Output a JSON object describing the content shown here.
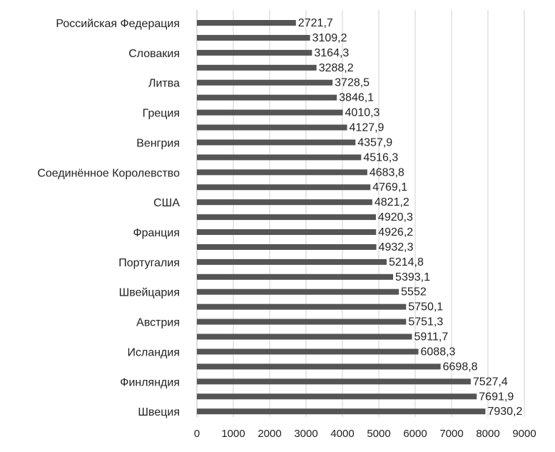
{
  "chart_data": {
    "type": "bar",
    "orientation": "horizontal",
    "categories": [
      "Российская Федерация",
      "",
      "Словакия",
      "",
      "Литва",
      "",
      "Греция",
      "",
      "Венгрия",
      "",
      "Соединённое Королевство",
      "",
      "США",
      "",
      "Франция",
      "",
      "Португалия",
      "",
      "Швейцария",
      "",
      "Австрия",
      "",
      "Исландия",
      "",
      "Финляндия",
      "",
      "Швеция"
    ],
    "values": [
      2721.7,
      3109.2,
      3164.3,
      3288.2,
      3728.5,
      3846.1,
      4010.3,
      4127.9,
      4357.9,
      4516.3,
      4683.8,
      4769.1,
      4821.2,
      4920.3,
      4926.2,
      4932.3,
      5214.8,
      5393.1,
      5552,
      5750.1,
      5751.3,
      5911.7,
      6088.3,
      6698.8,
      7527.4,
      7691.9,
      7930.2
    ],
    "value_labels": [
      "2721,7",
      "3109,2",
      "3164,3",
      "3288,2",
      "3728,5",
      "3846,1",
      "4010,3",
      "4127,9",
      "4357,9",
      "4516,3",
      "4683,8",
      "4769,1",
      "4821,2",
      "4920,3",
      "4926,2",
      "4932,3",
      "5214,8",
      "5393,1",
      "5552",
      "5750,1",
      "5751,3",
      "5911,7",
      "6088,3",
      "6698,8",
      "7527,4",
      "7691,9",
      "7930,2"
    ],
    "xlim": [
      0,
      9000
    ],
    "xticks": [
      "0",
      "1000",
      "2000",
      "3000",
      "4000",
      "5000",
      "6000",
      "7000",
      "8000",
      "9000"
    ],
    "grid": true,
    "bar_color": "#555555",
    "grid_color": "#d0d0d0",
    "title": "",
    "xlabel": "",
    "ylabel": ""
  }
}
